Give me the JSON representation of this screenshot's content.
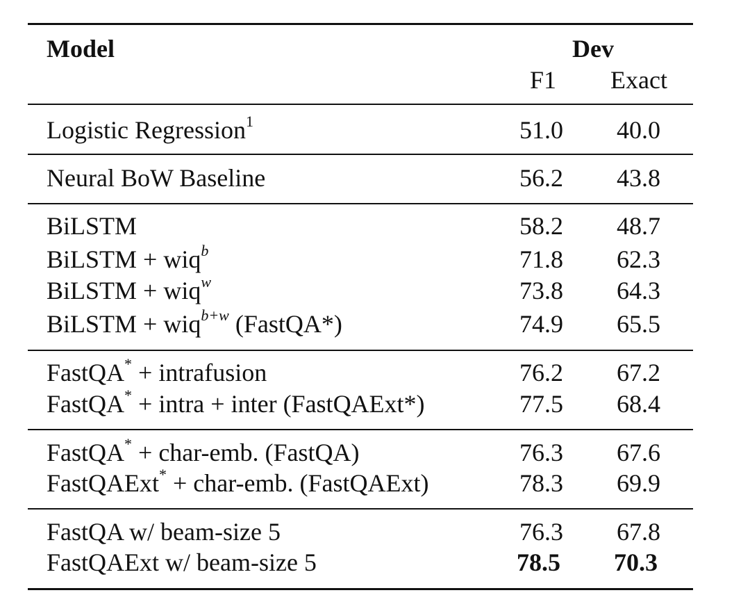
{
  "header": {
    "model_label": "Model",
    "dev_label": "Dev",
    "f1_label": "F1",
    "exact_label": "Exact"
  },
  "rows": [
    {
      "name": "Logistic Regression",
      "sup": "1",
      "suffix": "",
      "f1": "51.0",
      "exact": "40.0"
    },
    {
      "name": "Neural BoW Baseline",
      "sup": "",
      "suffix": "",
      "f1": "56.2",
      "exact": "43.8"
    },
    {
      "name": "BiLSTM",
      "sup": "",
      "suffix": "",
      "f1": "58.2",
      "exact": "48.7"
    },
    {
      "name": "BiLSTM + wiq",
      "sup": "b",
      "suffix": "",
      "f1": "71.8",
      "exact": "62.3"
    },
    {
      "name": "BiLSTM + wiq",
      "sup": "w",
      "suffix": "",
      "f1": "73.8",
      "exact": "64.3"
    },
    {
      "name": "BiLSTM + wiq",
      "sup": "b+w",
      "suffix": " (FastQA*)",
      "f1": "74.9",
      "exact": "65.5"
    },
    {
      "name": "FastQA",
      "sup": "*",
      "suffix": " + intrafusion",
      "f1": "76.2",
      "exact": "67.2"
    },
    {
      "name": "FastQA",
      "sup": "*",
      "suffix": " + intra + inter (FastQAExt*)",
      "f1": "77.5",
      "exact": "68.4"
    },
    {
      "name": "FastQA",
      "sup": "*",
      "suffix": " + char-emb. (FastQA)",
      "f1": "76.3",
      "exact": "67.6"
    },
    {
      "name": "FastQAExt",
      "sup": "*",
      "suffix": " + char-emb. (FastQAExt)",
      "f1": "78.3",
      "exact": "69.9"
    },
    {
      "name": "FastQA w/ beam-size 5",
      "sup": "",
      "suffix": "",
      "f1": "76.3",
      "exact": "67.8"
    },
    {
      "name": "FastQAExt w/ beam-size 5",
      "sup": "",
      "suffix": "",
      "f1": "78.5",
      "exact": "70.3"
    }
  ]
}
